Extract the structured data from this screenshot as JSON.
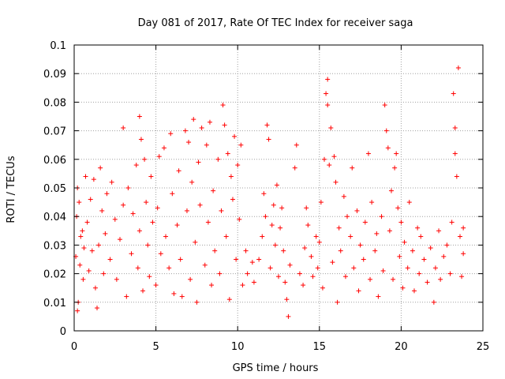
{
  "chart_data": {
    "type": "scatter",
    "title": "Day 081 of 2017, Rate Of TEC Index for receiver saga",
    "xlabel": "GPS time / hours",
    "ylabel": "ROTI / TECUs",
    "xlim": [
      0,
      25
    ],
    "ylim": [
      0,
      0.1
    ],
    "x_ticks": [
      "0",
      "5",
      "10",
      "15",
      "20",
      "25"
    ],
    "y_ticks": [
      "0",
      "0.01",
      "0.02",
      "0.03",
      "0.04",
      "0.05",
      "0.06",
      "0.07",
      "0.08",
      "0.09",
      "0.1"
    ],
    "grid": true,
    "marker": "plus",
    "color": "#ff0000",
    "series": [
      {
        "points": [
          [
            0.1,
            0.026
          ],
          [
            0.15,
            0.04
          ],
          [
            0.2,
            0.05
          ],
          [
            0.2,
            0.007
          ],
          [
            0.25,
            0.01
          ],
          [
            0.3,
            0.045
          ],
          [
            0.35,
            0.023
          ],
          [
            0.4,
            0.033
          ],
          [
            0.5,
            0.035
          ],
          [
            0.55,
            0.018
          ],
          [
            0.6,
            0.029
          ],
          [
            0.7,
            0.054
          ],
          [
            0.8,
            0.038
          ],
          [
            0.9,
            0.021
          ],
          [
            1.0,
            0.046
          ],
          [
            1.1,
            0.028
          ],
          [
            1.2,
            0.053
          ],
          [
            1.3,
            0.015
          ],
          [
            1.4,
            0.008
          ],
          [
            1.5,
            0.03
          ],
          [
            1.6,
            0.057
          ],
          [
            1.7,
            0.042
          ],
          [
            1.8,
            0.02
          ],
          [
            1.9,
            0.034
          ],
          [
            2.0,
            0.048
          ],
          [
            2.2,
            0.025
          ],
          [
            2.3,
            0.052
          ],
          [
            2.5,
            0.039
          ],
          [
            2.6,
            0.018
          ],
          [
            2.8,
            0.032
          ],
          [
            3.0,
            0.071
          ],
          [
            3.0,
            0.044
          ],
          [
            3.2,
            0.012
          ],
          [
            3.3,
            0.05
          ],
          [
            3.5,
            0.027
          ],
          [
            3.6,
            0.041
          ],
          [
            3.8,
            0.058
          ],
          [
            3.9,
            0.022
          ],
          [
            4.0,
            0.075
          ],
          [
            4.0,
            0.035
          ],
          [
            4.1,
            0.067
          ],
          [
            4.2,
            0.014
          ],
          [
            4.3,
            0.06
          ],
          [
            4.4,
            0.045
          ],
          [
            4.5,
            0.03
          ],
          [
            4.6,
            0.019
          ],
          [
            4.7,
            0.054
          ],
          [
            4.8,
            0.038
          ],
          [
            5.0,
            0.016
          ],
          [
            5.1,
            0.043
          ],
          [
            5.2,
            0.061
          ],
          [
            5.3,
            0.027
          ],
          [
            5.5,
            0.064
          ],
          [
            5.6,
            0.033
          ],
          [
            5.8,
            0.022
          ],
          [
            5.9,
            0.069
          ],
          [
            6.0,
            0.048
          ],
          [
            6.1,
            0.013
          ],
          [
            6.3,
            0.037
          ],
          [
            6.4,
            0.056
          ],
          [
            6.5,
            0.025
          ],
          [
            6.6,
            0.012
          ],
          [
            6.8,
            0.07
          ],
          [
            6.9,
            0.042
          ],
          [
            7.0,
            0.066
          ],
          [
            7.1,
            0.018
          ],
          [
            7.2,
            0.052
          ],
          [
            7.3,
            0.074
          ],
          [
            7.4,
            0.031
          ],
          [
            7.5,
            0.01
          ],
          [
            7.6,
            0.059
          ],
          [
            7.7,
            0.044
          ],
          [
            7.8,
            0.071
          ],
          [
            8.0,
            0.023
          ],
          [
            8.1,
            0.065
          ],
          [
            8.2,
            0.038
          ],
          [
            8.3,
            0.073
          ],
          [
            8.4,
            0.016
          ],
          [
            8.5,
            0.049
          ],
          [
            8.6,
            0.028
          ],
          [
            8.8,
            0.06
          ],
          [
            8.9,
            0.02
          ],
          [
            9.0,
            0.042
          ],
          [
            9.1,
            0.079
          ],
          [
            9.2,
            0.072
          ],
          [
            9.3,
            0.033
          ],
          [
            9.4,
            0.062
          ],
          [
            9.5,
            0.011
          ],
          [
            9.6,
            0.054
          ],
          [
            9.7,
            0.046
          ],
          [
            9.8,
            0.068
          ],
          [
            9.9,
            0.025
          ],
          [
            10.0,
            0.058
          ],
          [
            10.1,
            0.039
          ],
          [
            10.2,
            0.065
          ],
          [
            10.3,
            0.016
          ],
          [
            10.5,
            0.028
          ],
          [
            10.6,
            0.02
          ],
          [
            10.9,
            0.024
          ],
          [
            11.0,
            0.017
          ],
          [
            11.3,
            0.025
          ],
          [
            11.5,
            0.033
          ],
          [
            11.6,
            0.048
          ],
          [
            11.7,
            0.04
          ],
          [
            11.8,
            0.072
          ],
          [
            11.9,
            0.067
          ],
          [
            12.0,
            0.022
          ],
          [
            12.1,
            0.037
          ],
          [
            12.2,
            0.044
          ],
          [
            12.3,
            0.03
          ],
          [
            12.4,
            0.051
          ],
          [
            12.5,
            0.019
          ],
          [
            12.6,
            0.036
          ],
          [
            12.7,
            0.043
          ],
          [
            12.8,
            0.028
          ],
          [
            12.9,
            0.017
          ],
          [
            13.0,
            0.011
          ],
          [
            13.1,
            0.005
          ],
          [
            13.2,
            0.023
          ],
          [
            13.5,
            0.057
          ],
          [
            13.6,
            0.065
          ],
          [
            13.8,
            0.02
          ],
          [
            14.0,
            0.016
          ],
          [
            14.1,
            0.029
          ],
          [
            14.2,
            0.043
          ],
          [
            14.3,
            0.037
          ],
          [
            14.5,
            0.026
          ],
          [
            14.6,
            0.019
          ],
          [
            14.8,
            0.033
          ],
          [
            14.9,
            0.022
          ],
          [
            15.0,
            0.031
          ],
          [
            15.1,
            0.045
          ],
          [
            15.2,
            0.015
          ],
          [
            15.3,
            0.06
          ],
          [
            15.4,
            0.083
          ],
          [
            15.5,
            0.088
          ],
          [
            15.5,
            0.079
          ],
          [
            15.6,
            0.058
          ],
          [
            15.7,
            0.071
          ],
          [
            15.8,
            0.024
          ],
          [
            15.9,
            0.061
          ],
          [
            16.0,
            0.052
          ],
          [
            16.1,
            0.01
          ],
          [
            16.2,
            0.036
          ],
          [
            16.3,
            0.028
          ],
          [
            16.5,
            0.047
          ],
          [
            16.6,
            0.019
          ],
          [
            16.7,
            0.04
          ],
          [
            16.9,
            0.033
          ],
          [
            17.0,
            0.057
          ],
          [
            17.1,
            0.022
          ],
          [
            17.3,
            0.042
          ],
          [
            17.4,
            0.014
          ],
          [
            17.5,
            0.03
          ],
          [
            17.7,
            0.025
          ],
          [
            17.8,
            0.038
          ],
          [
            18.0,
            0.062
          ],
          [
            18.1,
            0.018
          ],
          [
            18.2,
            0.045
          ],
          [
            18.4,
            0.028
          ],
          [
            18.5,
            0.034
          ],
          [
            18.6,
            0.012
          ],
          [
            18.8,
            0.04
          ],
          [
            18.9,
            0.021
          ],
          [
            19.0,
            0.079
          ],
          [
            19.1,
            0.07
          ],
          [
            19.2,
            0.064
          ],
          [
            19.3,
            0.035
          ],
          [
            19.4,
            0.049
          ],
          [
            19.5,
            0.018
          ],
          [
            19.6,
            0.057
          ],
          [
            19.7,
            0.062
          ],
          [
            19.8,
            0.043
          ],
          [
            19.9,
            0.026
          ],
          [
            20.0,
            0.038
          ],
          [
            20.1,
            0.015
          ],
          [
            20.2,
            0.031
          ],
          [
            20.4,
            0.022
          ],
          [
            20.5,
            0.045
          ],
          [
            20.7,
            0.028
          ],
          [
            20.8,
            0.014
          ],
          [
            21.0,
            0.036
          ],
          [
            21.1,
            0.02
          ],
          [
            21.2,
            0.033
          ],
          [
            21.4,
            0.025
          ],
          [
            21.6,
            0.017
          ],
          [
            21.8,
            0.029
          ],
          [
            22.0,
            0.01
          ],
          [
            22.1,
            0.022
          ],
          [
            22.3,
            0.035
          ],
          [
            22.4,
            0.018
          ],
          [
            22.6,
            0.026
          ],
          [
            22.8,
            0.03
          ],
          [
            23.0,
            0.02
          ],
          [
            23.1,
            0.038
          ],
          [
            23.2,
            0.083
          ],
          [
            23.3,
            0.071
          ],
          [
            23.3,
            0.062
          ],
          [
            23.4,
            0.054
          ],
          [
            23.5,
            0.092
          ],
          [
            23.6,
            0.033
          ],
          [
            23.7,
            0.019
          ],
          [
            23.8,
            0.027
          ],
          [
            23.8,
            0.036
          ]
        ]
      }
    ]
  }
}
